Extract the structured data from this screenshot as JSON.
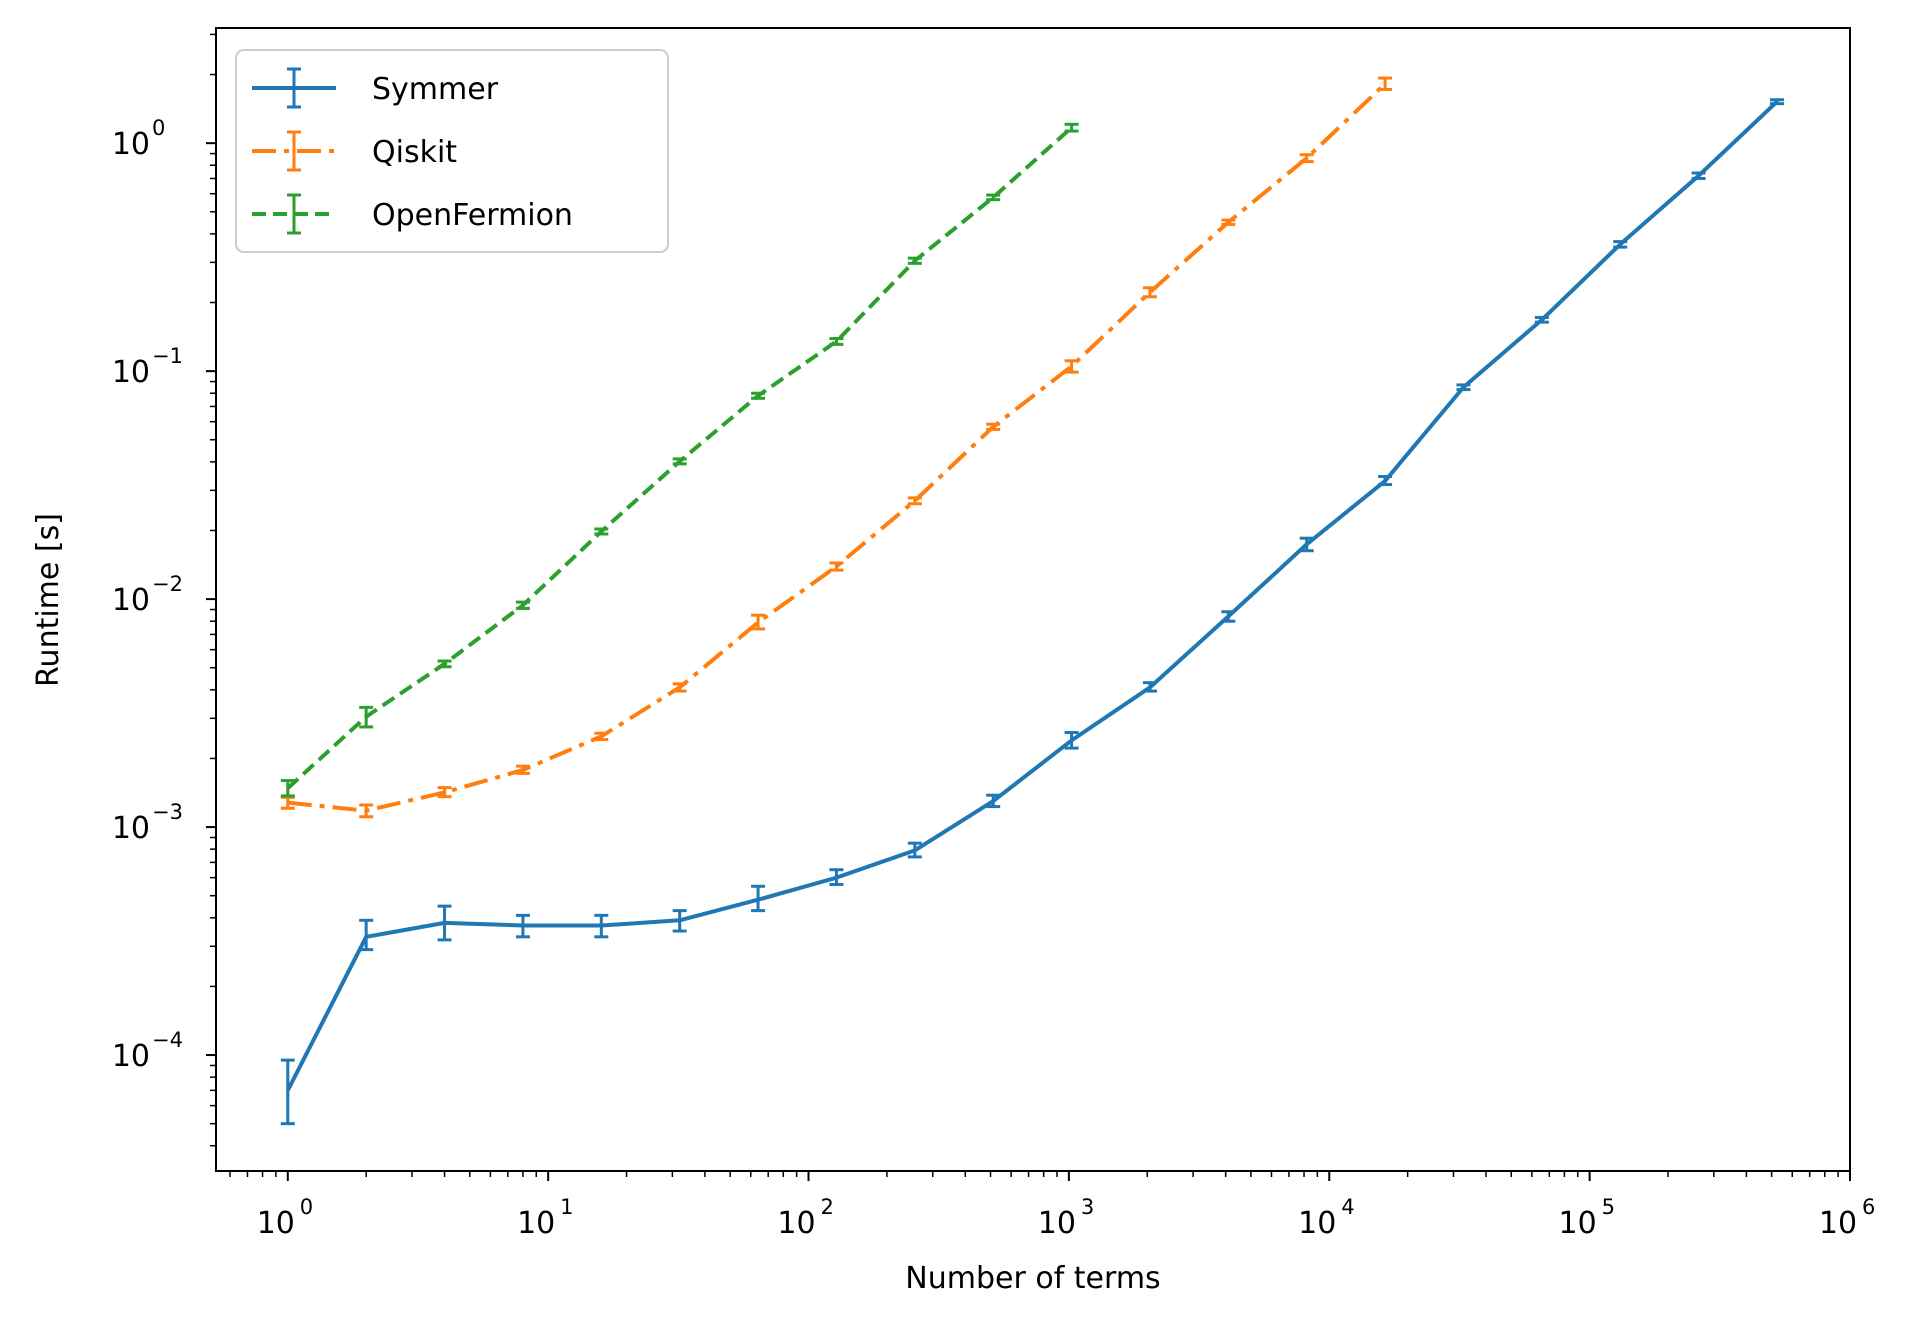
{
  "chart_data": {
    "type": "line",
    "title": "",
    "xlabel": "Number of terms",
    "ylabel": "Runtime [s]",
    "xscale": "log",
    "yscale": "log",
    "xlim": [
      0.53,
      1000000
    ],
    "ylim": [
      3.1e-05,
      3.2
    ],
    "x_ticks": [
      {
        "value": 1,
        "base": "10",
        "exp": "0"
      },
      {
        "value": 10,
        "base": "10",
        "exp": "1"
      },
      {
        "value": 100,
        "base": "10",
        "exp": "2"
      },
      {
        "value": 1000,
        "base": "10",
        "exp": "3"
      },
      {
        "value": 10000,
        "base": "10",
        "exp": "4"
      },
      {
        "value": 100000,
        "base": "10",
        "exp": "5"
      },
      {
        "value": 1000000,
        "base": "10",
        "exp": "6"
      }
    ],
    "y_ticks": [
      {
        "value": 0.0001,
        "base": "10",
        "exp": "−4"
      },
      {
        "value": 0.001,
        "base": "10",
        "exp": "−3"
      },
      {
        "value": 0.01,
        "base": "10",
        "exp": "−2"
      },
      {
        "value": 0.1,
        "base": "10",
        "exp": "−1"
      },
      {
        "value": 1,
        "base": "10",
        "exp": "0"
      }
    ],
    "legend_position": "top-left",
    "grid": false,
    "series": [
      {
        "name": "Symmer",
        "color": "#1f77b4",
        "linestyle": "solid",
        "x": [
          1,
          2,
          4,
          8,
          16,
          32,
          64,
          128,
          256,
          512,
          1024,
          2048,
          4096,
          8192,
          16384,
          32768,
          65536,
          131072,
          262144,
          524288
        ],
        "y": [
          7e-05,
          0.00033,
          0.00038,
          0.00037,
          0.00037,
          0.00039,
          0.00048,
          0.0006,
          0.00079,
          0.0013,
          0.0024,
          0.0041,
          0.0084,
          0.0174,
          0.033,
          0.085,
          0.168,
          0.36,
          0.72,
          1.52
        ],
        "err_low": [
          5e-05,
          0.00029,
          0.00032,
          0.00033,
          0.00033,
          0.00035,
          0.00043,
          0.00056,
          0.00074,
          0.00123,
          0.00222,
          0.00395,
          0.008,
          0.0163,
          0.0318,
          0.083,
          0.164,
          0.35,
          0.7,
          1.49
        ],
        "err_high": [
          9.5e-05,
          0.00039,
          0.00045,
          0.00041,
          0.00041,
          0.00043,
          0.00055,
          0.00065,
          0.00085,
          0.00138,
          0.0026,
          0.0043,
          0.0088,
          0.0185,
          0.0345,
          0.087,
          0.172,
          0.37,
          0.74,
          1.55
        ]
      },
      {
        "name": "Qiskit",
        "color": "#ff7f0e",
        "linestyle": "dashdot",
        "x": [
          1,
          2,
          4,
          8,
          16,
          32,
          64,
          128,
          256,
          512,
          1024,
          2048,
          4096,
          8192,
          16384
        ],
        "y": [
          0.00128,
          0.00118,
          0.00142,
          0.00178,
          0.0025,
          0.0041,
          0.0079,
          0.0139,
          0.027,
          0.057,
          0.105,
          0.222,
          0.45,
          0.86,
          1.82
        ],
        "err_low": [
          0.00121,
          0.00111,
          0.00136,
          0.00172,
          0.00242,
          0.00395,
          0.0074,
          0.0134,
          0.0262,
          0.0555,
          0.099,
          0.212,
          0.44,
          0.83,
          1.72
        ],
        "err_high": [
          0.00135,
          0.00125,
          0.00149,
          0.00185,
          0.00258,
          0.00425,
          0.0085,
          0.0144,
          0.0278,
          0.0585,
          0.111,
          0.232,
          0.46,
          0.89,
          1.93
        ]
      },
      {
        "name": "OpenFermion",
        "color": "#2ca02c",
        "linestyle": "dashed",
        "x": [
          1,
          2,
          4,
          8,
          16,
          32,
          64,
          128,
          256,
          512,
          1024
        ],
        "y": [
          0.00148,
          0.00305,
          0.0052,
          0.0094,
          0.0198,
          0.0402,
          0.078,
          0.135,
          0.305,
          0.578,
          1.17
        ],
        "err_low": [
          0.00137,
          0.00275,
          0.00505,
          0.0091,
          0.0193,
          0.0392,
          0.076,
          0.131,
          0.297,
          0.565,
          1.13
        ],
        "err_high": [
          0.0016,
          0.00335,
          0.00535,
          0.0097,
          0.0203,
          0.0412,
          0.08,
          0.139,
          0.313,
          0.592,
          1.21
        ]
      }
    ]
  }
}
